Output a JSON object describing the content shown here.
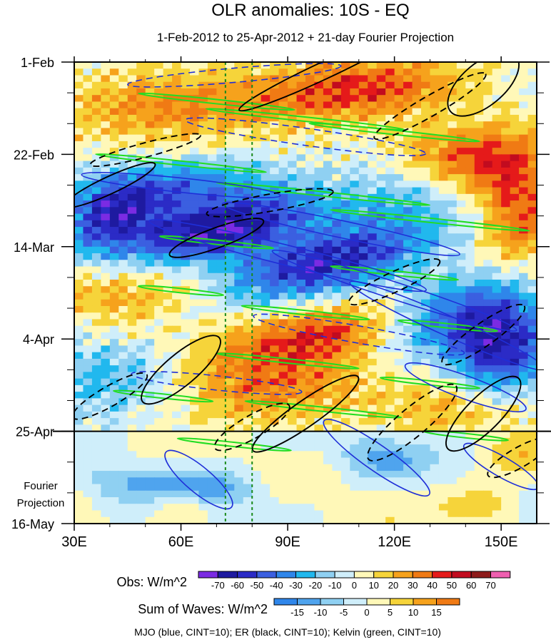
{
  "chart_data": {
    "type": "heatmap",
    "title": "OLR anomalies: 10S - EQ",
    "subtitle": "1-Feb-2012 to 25-Apr-2012 + 21-day Fourier Projection",
    "x_axis": {
      "range": [
        30,
        160
      ],
      "ticks": [
        30,
        60,
        90,
        120,
        150
      ],
      "tick_labels": [
        "30E",
        "60E",
        "90E",
        "120E",
        "150E"
      ]
    },
    "y_axis": {
      "range_days": [
        0,
        105
      ],
      "ticks": [
        0,
        21,
        42,
        63,
        84,
        105
      ],
      "tick_labels": [
        "1-Feb",
        "22-Feb",
        "14-Mar",
        "4-Apr",
        "25-Apr",
        "16-May"
      ],
      "projection_label": "Fourier\nProjection",
      "observed_end_day": 84
    },
    "reference_longitudes": [
      72.5,
      80
    ],
    "obs_colorbar": {
      "label": "Obs: W/m^2",
      "levels": [
        -70,
        -60,
        -50,
        -40,
        -30,
        -20,
        -10,
        0,
        10,
        20,
        30,
        40,
        50,
        60,
        70
      ],
      "colors": [
        "#7b2be3",
        "#1e1aa0",
        "#2b2bc6",
        "#3b5fe0",
        "#2f86ea",
        "#21b8ee",
        "#8fd0f2",
        "#cfeefa",
        "#fff8b8",
        "#f6d43a",
        "#f6a21c",
        "#f07a14",
        "#e51a1a",
        "#c20b1f",
        "#8e1b1b",
        "#ef5fb0"
      ]
    },
    "waves_colorbar": {
      "label": "Sum of Waves: W/m^2",
      "levels": [
        -15,
        -10,
        -5,
        0,
        5,
        10,
        15
      ],
      "colors": [
        "#2f86ea",
        "#4fa4ee",
        "#8fd0f2",
        "#cfeefa",
        "#fff8b8",
        "#f6d43a",
        "#f6a21c",
        "#f07a14"
      ]
    },
    "contours_caption": "MJO (blue, CINT=10); ER (black, CINT=10); Kelvin (green, CINT=10)",
    "contour_series": [
      {
        "name": "MJO",
        "color": "#1f2fd8"
      },
      {
        "name": "ER",
        "color": "#000000"
      },
      {
        "name": "Kelvin",
        "color": "#22dd22"
      }
    ]
  }
}
